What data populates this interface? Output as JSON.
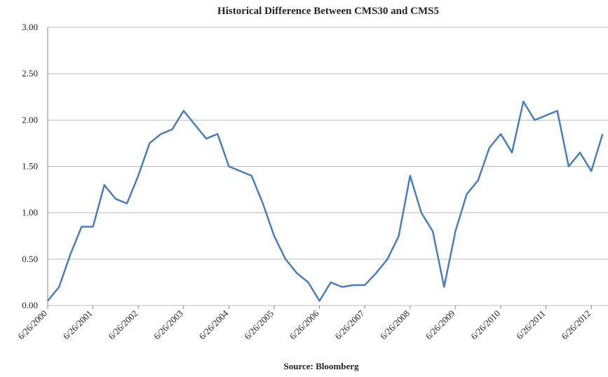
{
  "chart_data": {
    "type": "line",
    "title": "Historical Difference Between CMS30 and CMS5",
    "source": "Source: Bloomberg",
    "categories": [
      "6/26/2000",
      null,
      null,
      null,
      "6/26/2001",
      null,
      null,
      null,
      "6/26/2002",
      null,
      null,
      null,
      "6/26/2003",
      null,
      null,
      null,
      "6/26/2004",
      null,
      null,
      null,
      "6/26/2005",
      null,
      null,
      null,
      "6/26/2006",
      null,
      null,
      null,
      "6/26/2007",
      null,
      null,
      null,
      "6/26/2008",
      null,
      null,
      null,
      "6/26/2009",
      null,
      null,
      null,
      "6/26/2010",
      null,
      null,
      null,
      "6/26/2011",
      null,
      null,
      null,
      "6/26/2012",
      null
    ],
    "series": [
      {
        "name": "CMS30 - CMS5",
        "color": "#4a7ebb",
        "values": [
          0.05,
          0.2,
          0.55,
          0.85,
          0.85,
          1.3,
          1.15,
          1.1,
          1.4,
          1.75,
          1.85,
          1.9,
          2.1,
          1.95,
          1.8,
          1.85,
          1.5,
          1.45,
          1.4,
          1.1,
          0.75,
          0.5,
          0.35,
          0.25,
          0.05,
          0.25,
          0.2,
          0.22,
          0.22,
          0.35,
          0.5,
          0.75,
          1.4,
          1.0,
          0.8,
          0.2,
          0.8,
          1.2,
          1.35,
          1.7,
          1.85,
          1.65,
          2.2,
          2.0,
          2.05,
          2.1,
          1.5,
          1.65,
          1.45,
          1.85
        ]
      }
    ],
    "ylim": [
      0,
      3
    ],
    "yticks": [
      {
        "value": 0,
        "label": "0.00"
      },
      {
        "value": 0.5,
        "label": "0.50"
      },
      {
        "value": 1,
        "label": "1.00"
      },
      {
        "value": 1.5,
        "label": "1.50"
      },
      {
        "value": 2,
        "label": "2.00"
      },
      {
        "value": 2.5,
        "label": "2.50"
      },
      {
        "value": 3,
        "label": "3.00"
      }
    ],
    "grid": true
  }
}
